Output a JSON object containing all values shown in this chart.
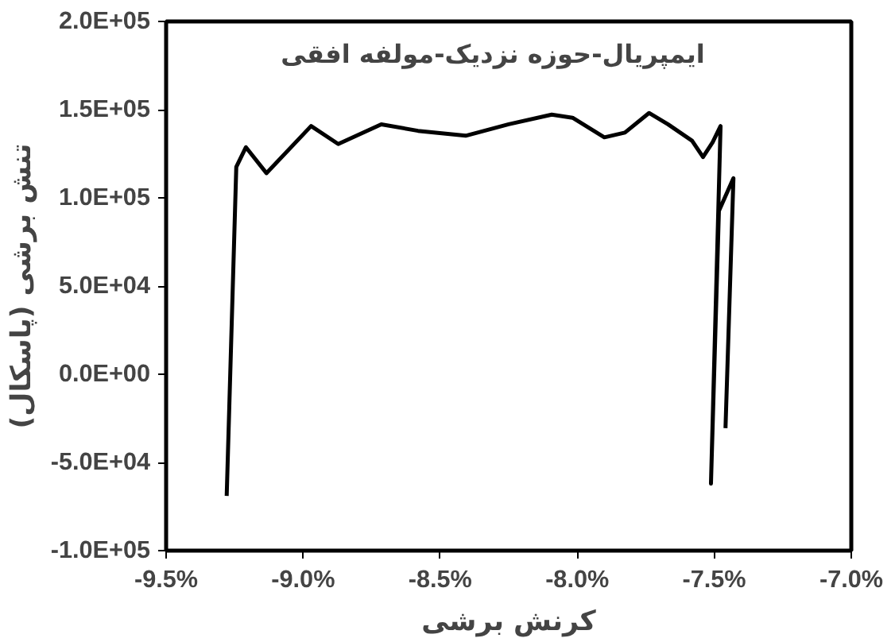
{
  "chart_data": {
    "type": "line",
    "title": "ایمپریال-حوزه نزدیک-مولفه افقی",
    "xlabel": "کرنش برشی",
    "ylabel": "تنش برشی (پاسکال)",
    "x": [
      -9.279,
      -9.244,
      -9.209,
      -9.134,
      -8.971,
      -8.872,
      -8.715,
      -8.581,
      -8.407,
      -8.25,
      -8.093,
      -8.017,
      -7.901,
      -7.826,
      -7.738,
      -7.669,
      -7.581,
      -7.541,
      -7.506,
      -7.477,
      -7.512,
      -7.483,
      -7.43,
      -7.459
    ],
    "series": [
      {
        "color": "#000000",
        "values": [
          -69000,
          117500,
          128700,
          114000,
          140700,
          130500,
          141700,
          138000,
          135200,
          141700,
          147200,
          145400,
          134300,
          137000,
          148100,
          141700,
          132400,
          123100,
          131500,
          140700,
          -62000,
          92600,
          111100,
          -30600
        ]
      }
    ],
    "xlim": [
      -9.5,
      -7.0
    ],
    "ylim": [
      -100000,
      200000
    ],
    "xticks": [
      {
        "value": -9.5,
        "label": "-9.5%"
      },
      {
        "value": -9.0,
        "label": "-9.0%"
      },
      {
        "value": -8.5,
        "label": "-8.5%"
      },
      {
        "value": -8.0,
        "label": "-8.0%"
      },
      {
        "value": -7.5,
        "label": "-7.5%"
      },
      {
        "value": -7.0,
        "label": "-7.0%"
      }
    ],
    "yticks": [
      {
        "value": -100000,
        "label": "-1.0E+05"
      },
      {
        "value": -50000,
        "label": "-5.0E+04"
      },
      {
        "value": 0,
        "label": "0.0E+00"
      },
      {
        "value": 50000,
        "label": "5.0E+04"
      },
      {
        "value": 100000,
        "label": "1.0E+05"
      },
      {
        "value": 150000,
        "label": "1.5E+05"
      },
      {
        "value": 200000,
        "label": "2.0E+05"
      }
    ],
    "grid": false,
    "marker": "none",
    "line_style": "solid"
  }
}
